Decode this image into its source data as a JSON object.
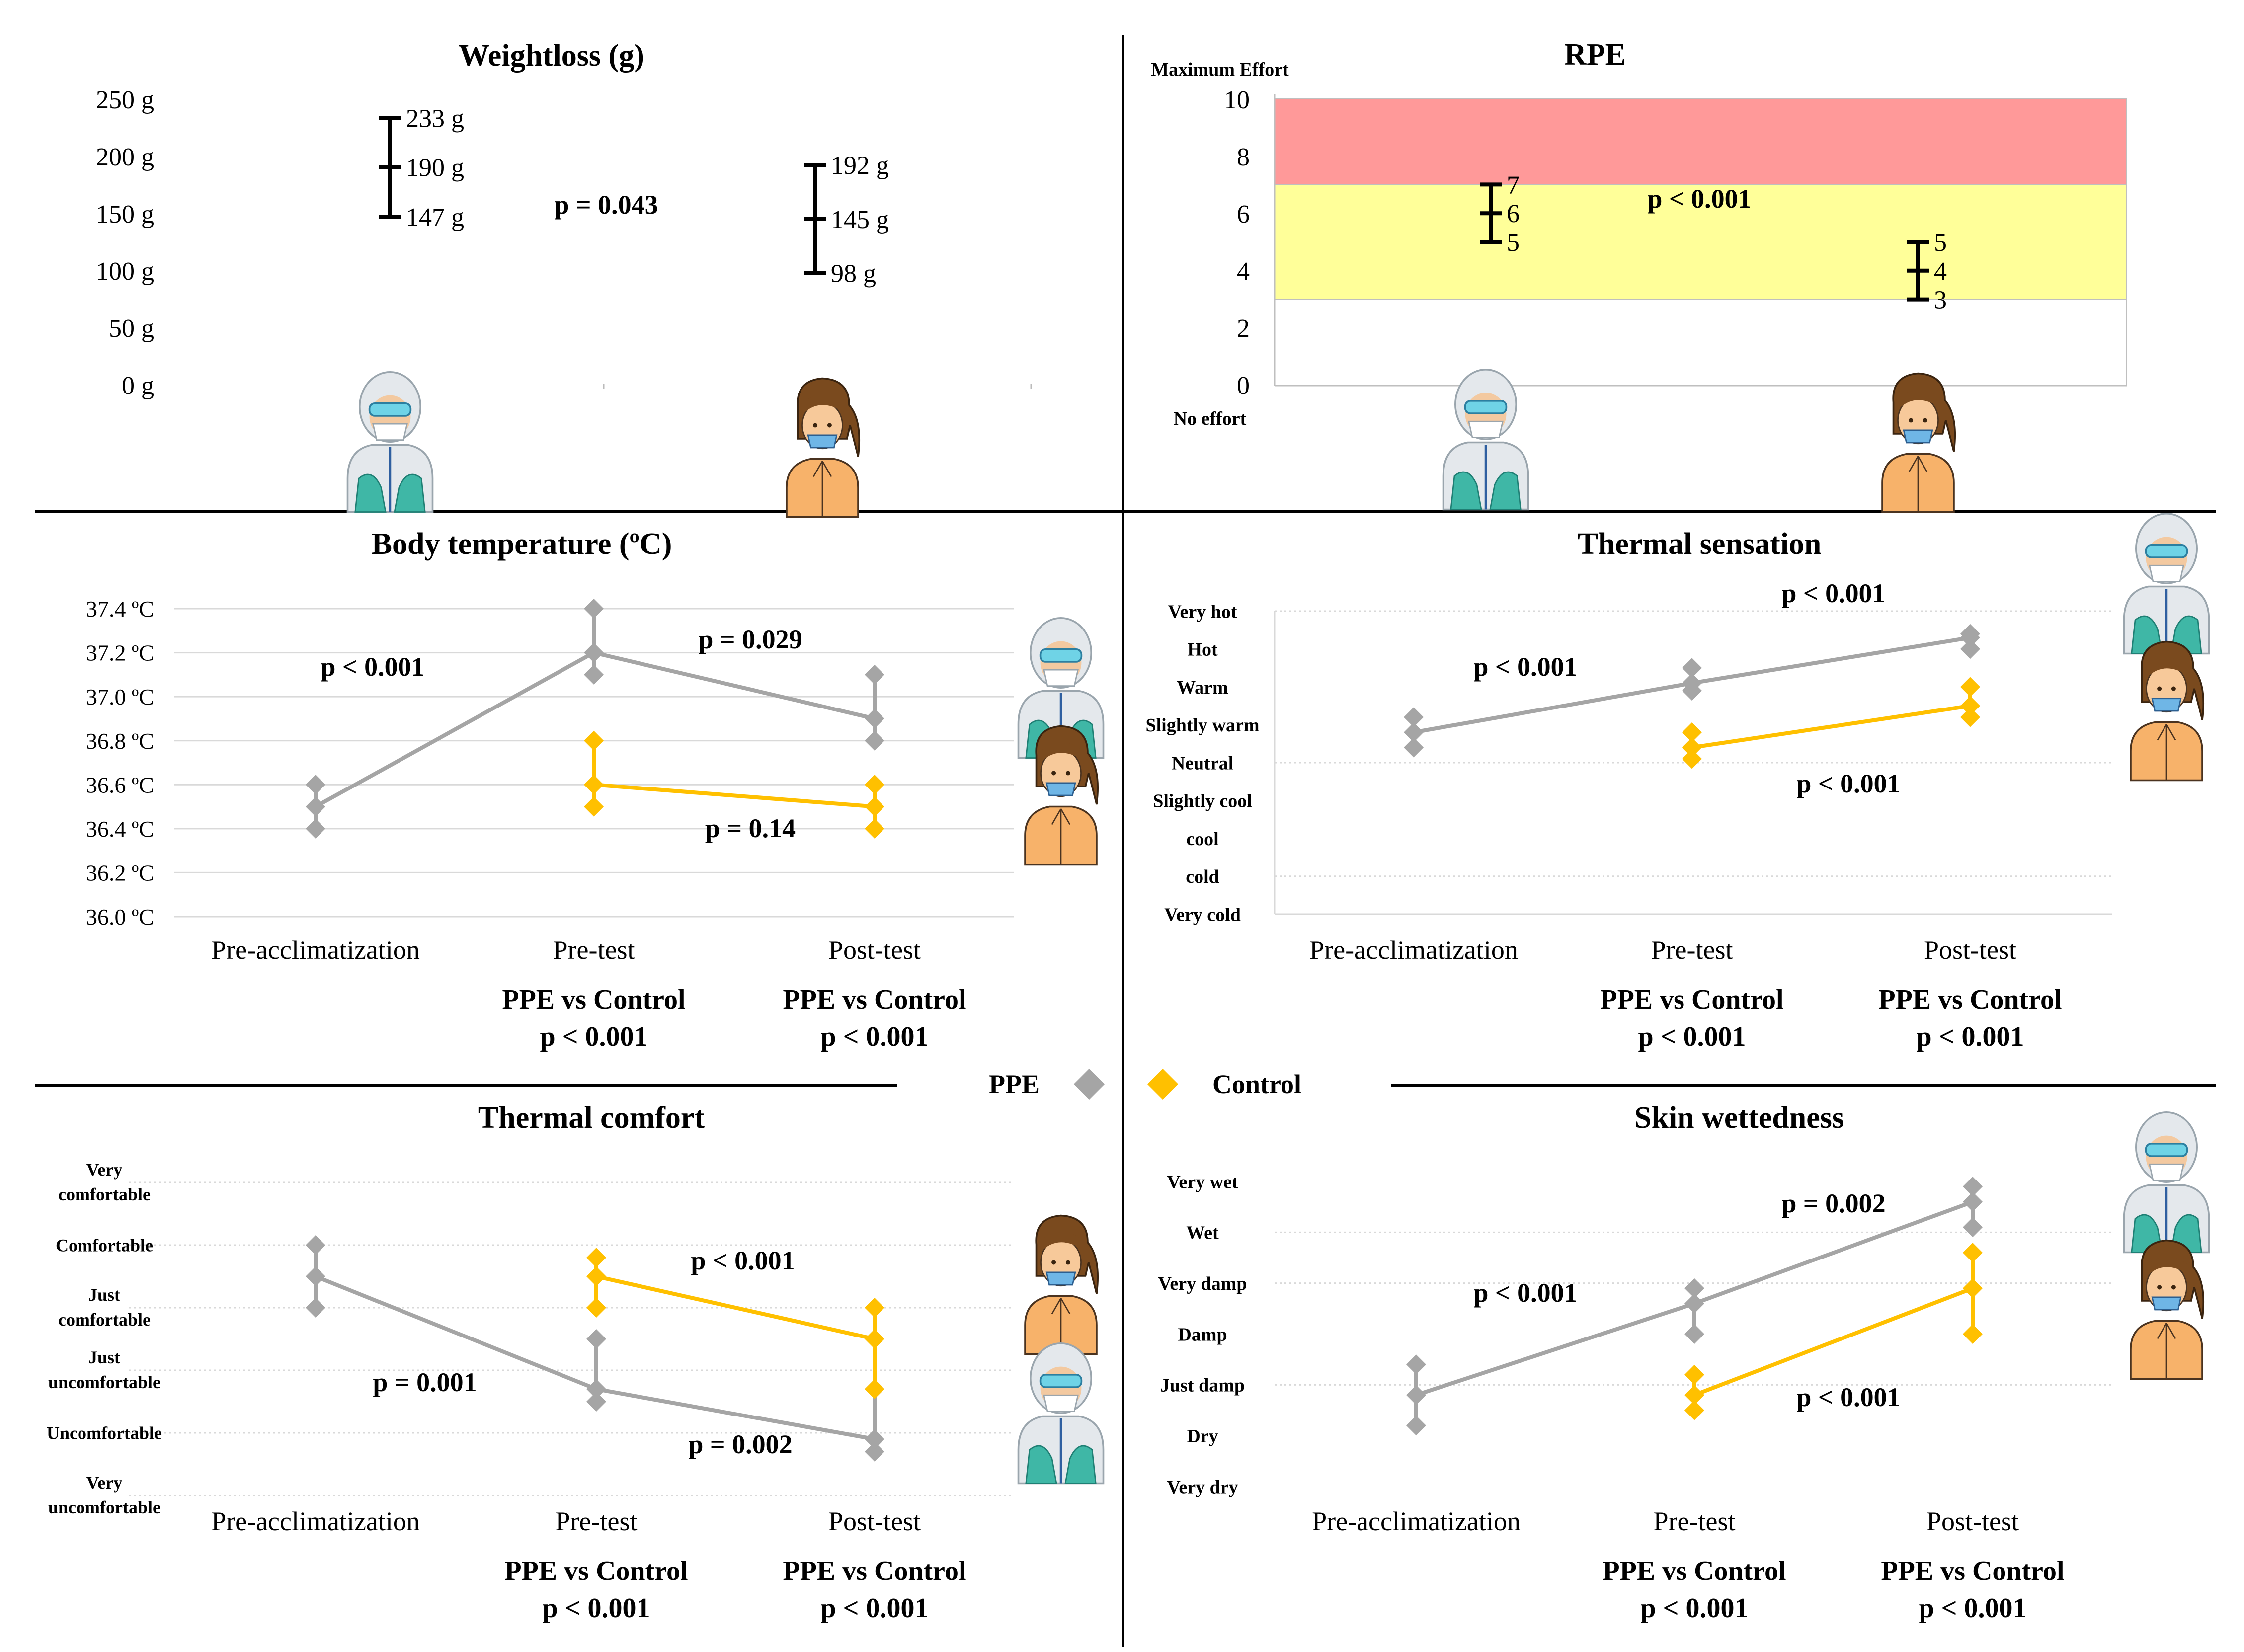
{
  "legend": {
    "ppe_label": "PPE",
    "control_label": "Control",
    "colors": {
      "ppe": "#A5A5A5",
      "control": "#FFC000"
    }
  },
  "chart_data": [
    {
      "id": "weightloss",
      "type": "errorbar",
      "title": "Weightloss (g)",
      "ylim": [
        0,
        250
      ],
      "yticks": [
        "250 g",
        "200 g",
        "150 g",
        "100 g",
        "50 g",
        "0 g"
      ],
      "groups": [
        {
          "name": "PPE",
          "mean": 190,
          "low": 147,
          "high": 233,
          "labels": {
            "high": "233 g",
            "mean": "190 g",
            "low": "147 g"
          }
        },
        {
          "name": "Control",
          "mean": 145,
          "low": 98,
          "high": 192,
          "labels": {
            "high": "192 g",
            "mean": "145 g",
            "low": "98 g"
          }
        }
      ],
      "p_value": "p = 0.043"
    },
    {
      "id": "rpe",
      "type": "errorbar",
      "title": "RPE",
      "ylim": [
        0,
        10
      ],
      "yticks": [
        "10",
        "8",
        "6",
        "4",
        "2",
        "0"
      ],
      "top_label": "Maximum Effort",
      "bottom_label": "No effort",
      "bands": [
        {
          "from": 7,
          "to": 10,
          "color": "#FF9999"
        },
        {
          "from": 3,
          "to": 7,
          "color": "#FFFF99"
        },
        {
          "from": 0,
          "to": 3,
          "color": "#FFFFFF"
        }
      ],
      "groups": [
        {
          "name": "PPE",
          "mean": 6,
          "low": 5,
          "high": 7,
          "labels": {
            "high": "7",
            "mean": "6",
            "low": "5"
          }
        },
        {
          "name": "Control",
          "mean": 4,
          "low": 3,
          "high": 5,
          "labels": {
            "high": "5",
            "mean": "4",
            "low": "3"
          }
        }
      ],
      "p_value": "p < 0.001"
    },
    {
      "id": "body_temperature",
      "type": "line",
      "title": "Body temperature (ºC)",
      "ylim": [
        36.0,
        37.4
      ],
      "yticks": [
        "37.4 ºC",
        "37.2 ºC",
        "37.0 ºC",
        "36.8 ºC",
        "36.6 ºC",
        "36.4 ºC",
        "36.2 ºC",
        "36.0 ºC"
      ],
      "categories": [
        "Pre-acclimatization",
        "Pre-test",
        "Post-test"
      ],
      "series": [
        {
          "name": "PPE",
          "values": [
            36.5,
            37.2,
            36.9
          ],
          "lows": [
            36.4,
            37.1,
            36.8
          ],
          "highs": [
            36.6,
            37.4,
            37.1
          ]
        },
        {
          "name": "Control",
          "values": [
            null,
            36.6,
            36.5
          ],
          "lows": [
            null,
            36.5,
            36.4
          ],
          "highs": [
            null,
            36.8,
            36.6
          ]
        }
      ],
      "p_values": {
        "ppe_time": "p < 0.001",
        "ppe_pre_post": "p = 0.029",
        "control_pre_post": "p = 0.14"
      },
      "comparisons": [
        {
          "label": "PPE vs Control",
          "p": "p < 0.001"
        },
        {
          "label": "PPE vs Control",
          "p": "p < 0.001"
        }
      ]
    },
    {
      "id": "thermal_sensation",
      "type": "line",
      "title": "Thermal sensation",
      "ylim": [
        1,
        9
      ],
      "yticks": [
        "Very hot",
        "Hot",
        "Warm",
        "Slightly warm",
        "Neutral",
        "Slightly cool",
        "cool",
        "cold",
        "Very cold"
      ],
      "categories": [
        "Pre-acclimatization",
        "Pre-test",
        "Post-test"
      ],
      "series": [
        {
          "name": "PPE",
          "values": [
            5.8,
            7.1,
            8.3
          ],
          "lows": [
            5.4,
            6.9,
            8.0
          ],
          "highs": [
            6.2,
            7.5,
            8.4
          ]
        },
        {
          "name": "Control",
          "values": [
            null,
            5.4,
            6.5
          ],
          "lows": [
            null,
            5.1,
            6.2
          ],
          "highs": [
            null,
            5.8,
            7.0
          ]
        }
      ],
      "p_values": {
        "ppe_first": "p < 0.001",
        "ppe_second": "p < 0.001",
        "control": "p < 0.001"
      },
      "comparisons": [
        {
          "label": "PPE vs Control",
          "p": "p < 0.001"
        },
        {
          "label": "PPE vs Control",
          "p": "p < 0.001"
        }
      ]
    },
    {
      "id": "thermal_comfort",
      "type": "line",
      "title": "Thermal comfort",
      "ylim": [
        1,
        6
      ],
      "yticks": [
        "Very comfortable",
        "Comfortable",
        "Just comfortable",
        "Just uncomfortable",
        "Uncomfortable",
        "Very uncomfortable"
      ],
      "categories": [
        "Pre-acclimatization",
        "Pre-test",
        "Post-test"
      ],
      "series": [
        {
          "name": "PPE",
          "values": [
            4.5,
            2.7,
            1.9
          ],
          "lows": [
            4.0,
            2.5,
            1.7
          ],
          "highs": [
            5.0,
            3.5,
            2.7
          ]
        },
        {
          "name": "Control",
          "values": [
            null,
            4.5,
            3.5
          ],
          "lows": [
            null,
            4.0,
            2.7
          ],
          "highs": [
            null,
            4.8,
            4.0
          ]
        }
      ],
      "p_values": {
        "ppe_first": "p = 0.001",
        "ppe_second": "p = 0.002",
        "control": "p < 0.001"
      },
      "comparisons": [
        {
          "label": "PPE vs Control",
          "p": "p < 0.001"
        },
        {
          "label": "PPE vs Control",
          "p": "p < 0.001"
        }
      ]
    },
    {
      "id": "skin_wettedness",
      "type": "line",
      "title": "Skin wettedness",
      "ylim": [
        1,
        7
      ],
      "yticks": [
        "Very wet",
        "Wet",
        "Very damp",
        "Damp",
        "Just damp",
        "Dry",
        "Very dry"
      ],
      "categories": [
        "Pre-acclimatization",
        "Pre-test",
        "Post-test"
      ],
      "series": [
        {
          "name": "PPE",
          "values": [
            2.8,
            4.6,
            6.6
          ],
          "lows": [
            2.2,
            4.0,
            6.1
          ],
          "highs": [
            3.4,
            4.9,
            6.9
          ]
        },
        {
          "name": "Control",
          "values": [
            null,
            2.8,
            4.9
          ],
          "lows": [
            null,
            2.5,
            4.0
          ],
          "highs": [
            null,
            3.2,
            5.6
          ]
        }
      ],
      "p_values": {
        "ppe_first": "p < 0.001",
        "ppe_second": "p = 0.002",
        "control": "p < 0.001"
      },
      "comparisons": [
        {
          "label": "PPE vs Control",
          "p": "p < 0.001"
        },
        {
          "label": "PPE vs Control",
          "p": "p < 0.001"
        }
      ]
    }
  ]
}
